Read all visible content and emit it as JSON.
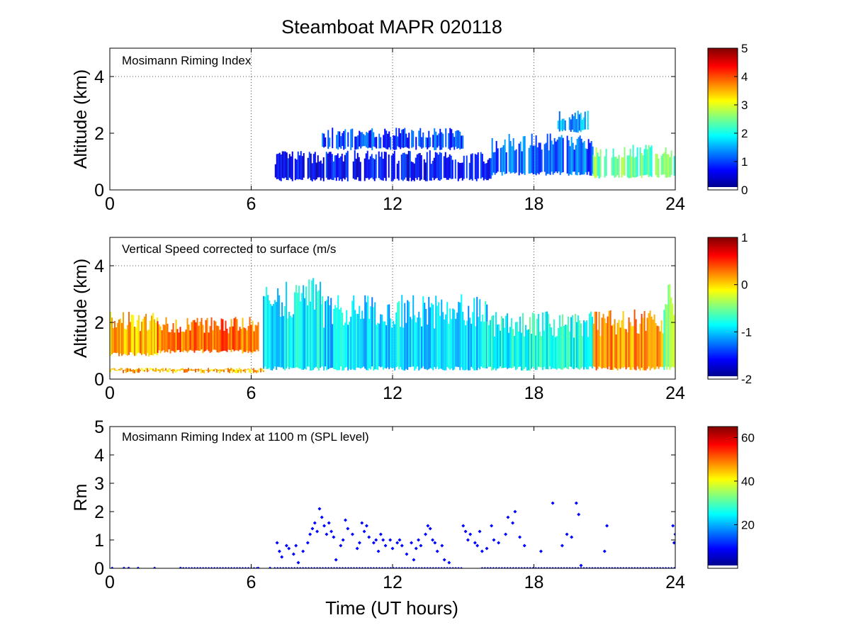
{
  "figure_title": "Steamboat MAPR 020118",
  "colormap": [
    "#00008f",
    "#0000ff",
    "#0080ff",
    "#00ffff",
    "#80ff80",
    "#ffff00",
    "#ff8000",
    "#ff0000",
    "#800000"
  ],
  "chart_data": [
    {
      "type": "heatmap",
      "title": "Mosimann Riming Index",
      "xlabel": "",
      "ylabel": "Altitude (km)",
      "xlim": [
        0,
        24
      ],
      "ylim": [
        0,
        5
      ],
      "xticks": [
        "0",
        "6",
        "12",
        "18",
        "24"
      ],
      "yticks": [
        "0",
        "2",
        "4"
      ],
      "colorbar": {
        "range": [
          0,
          5
        ],
        "ticks": [
          "0",
          "1",
          "2",
          "3",
          "4",
          "5"
        ]
      },
      "regions": [
        {
          "t0": 7.0,
          "t1": 16.2,
          "z0": 0.3,
          "z1": 1.4,
          "v": 0.6
        },
        {
          "t0": 9.0,
          "t1": 15.0,
          "z0": 1.4,
          "z1": 2.2,
          "v": 0.9
        },
        {
          "t0": 16.2,
          "t1": 20.5,
          "z0": 0.5,
          "z1": 2.0,
          "v": 1.1
        },
        {
          "t0": 19.0,
          "t1": 20.3,
          "z0": 2.0,
          "z1": 2.8,
          "v": 1.4
        },
        {
          "t0": 20.5,
          "t1": 24.0,
          "z0": 0.4,
          "z1": 1.6,
          "v": 2.4
        }
      ]
    },
    {
      "type": "heatmap",
      "title": "Vertical Speed corrected to surface (m/s",
      "xlabel": "",
      "ylabel": "Altitude (km)",
      "xlim": [
        0,
        24
      ],
      "ylim": [
        0,
        5
      ],
      "xticks": [
        "0",
        "6",
        "12",
        "18",
        "24"
      ],
      "yticks": [
        "0",
        "2",
        "4"
      ],
      "colorbar": {
        "range": [
          -2,
          1
        ],
        "ticks": [
          "-2",
          "-1",
          "0",
          "1"
        ]
      },
      "regions": [
        {
          "t0": 0.0,
          "t1": 6.5,
          "z0": 0.2,
          "z1": 0.4,
          "v": 0.1
        },
        {
          "t0": 0.0,
          "t1": 2.0,
          "z0": 0.8,
          "z1": 2.4,
          "v": 0.1
        },
        {
          "t0": 2.0,
          "t1": 6.3,
          "z0": 0.9,
          "z1": 2.2,
          "v": 0.3
        },
        {
          "t0": 6.5,
          "t1": 9.0,
          "z0": 0.3,
          "z1": 3.6,
          "v": -0.9
        },
        {
          "t0": 9.0,
          "t1": 16.0,
          "z0": 0.3,
          "z1": 3.0,
          "v": -1.0
        },
        {
          "t0": 16.0,
          "t1": 20.5,
          "z0": 0.3,
          "z1": 2.4,
          "v": -0.8
        },
        {
          "t0": 20.5,
          "t1": 23.5,
          "z0": 0.3,
          "z1": 2.5,
          "v": 0.2
        },
        {
          "t0": 23.5,
          "t1": 24.0,
          "z0": 0.3,
          "z1": 3.6,
          "v": -0.5
        }
      ]
    },
    {
      "type": "scatter",
      "title": "Mosimann Riming Index at 1100 m (SPL level)",
      "xlabel": "Time (UT hours)",
      "ylabel": "Rm",
      "xlim": [
        0,
        24
      ],
      "ylim": [
        0,
        5
      ],
      "xticks": [
        "0",
        "6",
        "12",
        "18",
        "24"
      ],
      "yticks": [
        "0",
        "1",
        "2",
        "3",
        "4",
        "5"
      ],
      "colorbar": {
        "range": [
          0,
          65
        ],
        "ticks": [
          "20",
          "40",
          "60"
        ]
      },
      "series": [
        {
          "name": "Rm",
          "points": [
            [
              0.1,
              0
            ],
            [
              0.6,
              0
            ],
            [
              0.8,
              0
            ],
            [
              1.2,
              0
            ],
            [
              1.9,
              0
            ],
            [
              3.0,
              0
            ],
            [
              6.3,
              0
            ],
            [
              6.8,
              0
            ],
            [
              7.1,
              0.9
            ],
            [
              7.2,
              0.6
            ],
            [
              7.3,
              0.4
            ],
            [
              7.5,
              0.8
            ],
            [
              7.6,
              0.7
            ],
            [
              7.8,
              0.5
            ],
            [
              7.9,
              0.8
            ],
            [
              8.0,
              0.2
            ],
            [
              8.2,
              0.6
            ],
            [
              8.4,
              0.9
            ],
            [
              8.5,
              1.2
            ],
            [
              8.6,
              1.4
            ],
            [
              8.7,
              1.6
            ],
            [
              8.8,
              1.3
            ],
            [
              8.9,
              2.1
            ],
            [
              9.0,
              1.8
            ],
            [
              9.1,
              1.5
            ],
            [
              9.2,
              1.2
            ],
            [
              9.3,
              1.6
            ],
            [
              9.4,
              1.3
            ],
            [
              9.5,
              1.1
            ],
            [
              9.6,
              0.3
            ],
            [
              9.8,
              0.8
            ],
            [
              9.9,
              1.0
            ],
            [
              10.0,
              1.7
            ],
            [
              10.1,
              1.4
            ],
            [
              10.3,
              1.2
            ],
            [
              10.5,
              0.7
            ],
            [
              10.6,
              0.9
            ],
            [
              10.7,
              1.6
            ],
            [
              10.8,
              1.3
            ],
            [
              10.9,
              1.5
            ],
            [
              11.0,
              1.1
            ],
            [
              11.2,
              0.9
            ],
            [
              11.3,
              1.0
            ],
            [
              11.4,
              0.6
            ],
            [
              11.5,
              1.2
            ],
            [
              11.6,
              1.0
            ],
            [
              11.7,
              0.8
            ],
            [
              11.9,
              1.0
            ],
            [
              12.0,
              0.7
            ],
            [
              12.2,
              0.9
            ],
            [
              12.3,
              1.0
            ],
            [
              12.4,
              0.8
            ],
            [
              12.6,
              0.5
            ],
            [
              12.8,
              0.9
            ],
            [
              12.9,
              0.3
            ],
            [
              13.0,
              0.7
            ],
            [
              13.1,
              1.0
            ],
            [
              13.2,
              0.8
            ],
            [
              13.4,
              1.2
            ],
            [
              13.5,
              1.5
            ],
            [
              13.6,
              1.4
            ],
            [
              13.7,
              1.0
            ],
            [
              13.8,
              0.9
            ],
            [
              13.9,
              0.6
            ],
            [
              14.1,
              0.8
            ],
            [
              14.2,
              0.3
            ],
            [
              14.4,
              0.2
            ],
            [
              15.0,
              1.5
            ],
            [
              15.1,
              1.3
            ],
            [
              15.2,
              1.0
            ],
            [
              15.3,
              1.2
            ],
            [
              15.5,
              0.9
            ],
            [
              15.6,
              0.8
            ],
            [
              15.7,
              1.3
            ],
            [
              15.8,
              0.6
            ],
            [
              16.0,
              0.7
            ],
            [
              16.2,
              1.5
            ],
            [
              16.3,
              1.0
            ],
            [
              16.5,
              0.9
            ],
            [
              16.8,
              1.2
            ],
            [
              16.9,
              1.8
            ],
            [
              17.1,
              1.6
            ],
            [
              17.2,
              2.0
            ],
            [
              17.4,
              1.1
            ],
            [
              17.6,
              0.8
            ],
            [
              18.3,
              0.6
            ],
            [
              18.8,
              2.3
            ],
            [
              19.2,
              0.8
            ],
            [
              19.4,
              1.2
            ],
            [
              19.6,
              1.1
            ],
            [
              19.8,
              2.3
            ],
            [
              19.9,
              1.9
            ],
            [
              20.0,
              0.1
            ],
            [
              21.0,
              0.6
            ],
            [
              21.1,
              1.5
            ],
            [
              23.9,
              1.5
            ],
            [
              23.95,
              0.9
            ],
            [
              24.0,
              1.2
            ]
          ]
        }
      ]
    }
  ]
}
